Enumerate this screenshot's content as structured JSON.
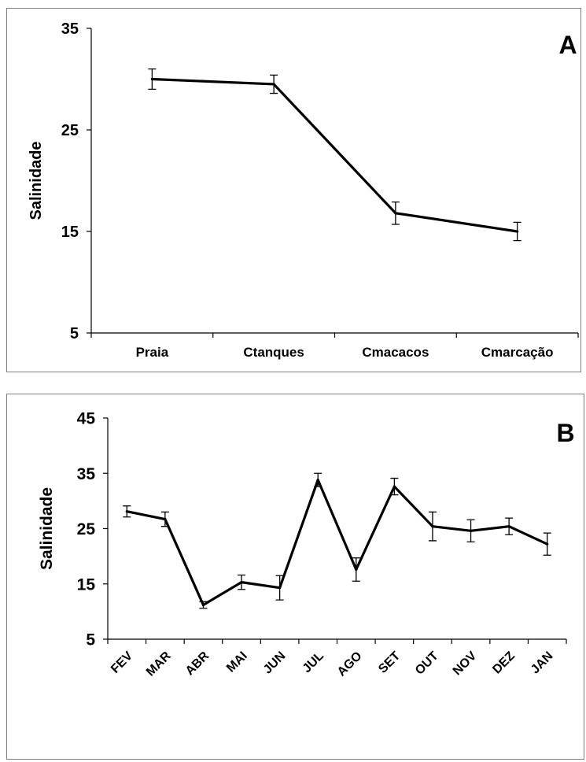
{
  "chart_data": [
    {
      "type": "line",
      "panel_label": "A",
      "ylabel": "Salinidade",
      "ylim": [
        5,
        35
      ],
      "yticks": [
        5,
        15,
        25,
        35
      ],
      "categories": [
        "Praia",
        "Ctanques",
        "Cmacacos",
        "Cmarcação"
      ],
      "series": [
        {
          "values": [
            30.0,
            29.5,
            16.8,
            15.0
          ],
          "error": [
            1.0,
            0.9,
            1.1,
            0.9
          ]
        }
      ],
      "grid": false
    },
    {
      "type": "line",
      "panel_label": "B",
      "ylabel": "Salinidade",
      "ylim": [
        5,
        45
      ],
      "yticks": [
        5,
        15,
        25,
        35,
        45
      ],
      "categories": [
        "FEV",
        "MAR",
        "ABR",
        "MAI",
        "JUN",
        "JUL",
        "AGO",
        "SET",
        "OUT",
        "NOV",
        "DEZ",
        "JAN"
      ],
      "series": [
        {
          "values": [
            28.1,
            26.7,
            11.2,
            15.3,
            14.3,
            33.8,
            17.6,
            32.6,
            25.4,
            24.6,
            25.4,
            22.2
          ],
          "error": [
            1.0,
            1.3,
            0.6,
            1.3,
            2.2,
            1.2,
            2.1,
            1.5,
            2.6,
            2.0,
            1.5,
            2.0
          ]
        }
      ],
      "grid": false
    }
  ]
}
